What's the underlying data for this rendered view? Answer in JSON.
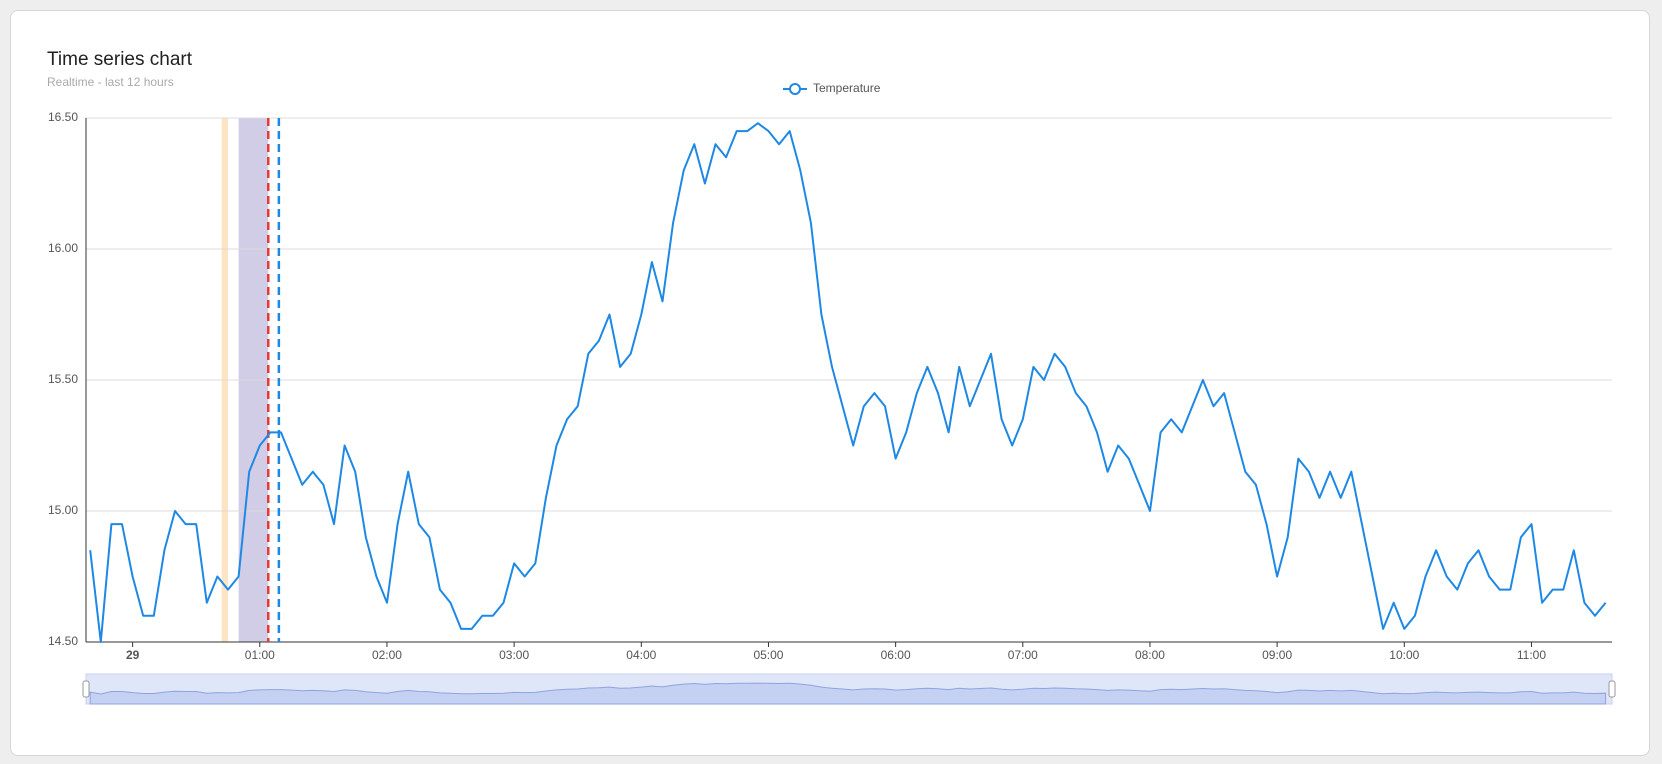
{
  "chart_data": {
    "type": "line",
    "title": "Time series chart",
    "subtitle": "Realtime - last 12 hours",
    "x": [
      "23:40",
      "23:45",
      "23:50",
      "23:55",
      "00:00",
      "00:05",
      "00:10",
      "00:15",
      "00:20",
      "00:25",
      "00:30",
      "00:35",
      "00:40",
      "00:45",
      "00:50",
      "00:55",
      "01:00",
      "01:05",
      "01:10",
      "01:15",
      "01:20",
      "01:25",
      "01:30",
      "01:35",
      "01:40",
      "01:45",
      "01:50",
      "01:55",
      "02:00",
      "02:05",
      "02:10",
      "02:15",
      "02:20",
      "02:25",
      "02:30",
      "02:35",
      "02:40",
      "02:45",
      "02:50",
      "02:55",
      "03:00",
      "03:05",
      "03:10",
      "03:15",
      "03:20",
      "03:25",
      "03:30",
      "03:35",
      "03:40",
      "03:45",
      "03:50",
      "03:55",
      "04:00",
      "04:05",
      "04:10",
      "04:15",
      "04:20",
      "04:25",
      "04:30",
      "04:35",
      "04:40",
      "04:45",
      "04:50",
      "04:55",
      "05:00",
      "05:05",
      "05:10",
      "05:15",
      "05:20",
      "05:25",
      "05:30",
      "05:35",
      "05:40",
      "05:45",
      "05:50",
      "05:55",
      "06:00",
      "06:05",
      "06:10",
      "06:15",
      "06:20",
      "06:25",
      "06:30",
      "06:35",
      "06:40",
      "06:45",
      "06:50",
      "06:55",
      "07:00",
      "07:05",
      "07:10",
      "07:15",
      "07:20",
      "07:25",
      "07:30",
      "07:35",
      "07:40",
      "07:45",
      "07:50",
      "07:55",
      "08:00",
      "08:05",
      "08:10",
      "08:15",
      "08:20",
      "08:25",
      "08:30",
      "08:35",
      "08:40",
      "08:45",
      "08:50",
      "08:55",
      "09:00",
      "09:05",
      "09:10",
      "09:15",
      "09:20",
      "09:25",
      "09:30",
      "09:35",
      "09:40",
      "09:45",
      "09:50",
      "09:55",
      "10:00",
      "10:05",
      "10:10",
      "10:15",
      "10:20",
      "10:25",
      "10:30",
      "10:35",
      "10:40",
      "10:45",
      "10:50",
      "10:55",
      "11:00",
      "11:05",
      "11:10",
      "11:15",
      "11:20",
      "11:25",
      "11:30",
      "11:35"
    ],
    "series": [
      {
        "name": "Temperature",
        "color": "#1e88e5",
        "values": [
          14.85,
          14.5,
          14.95,
          14.95,
          14.75,
          14.6,
          14.6,
          14.85,
          15.0,
          14.95,
          14.95,
          14.65,
          14.75,
          14.7,
          14.75,
          15.15,
          15.25,
          15.3,
          15.3,
          15.2,
          15.1,
          15.15,
          15.1,
          14.95,
          15.25,
          15.15,
          14.9,
          14.75,
          14.65,
          14.95,
          15.15,
          14.95,
          14.9,
          14.7,
          14.65,
          14.55,
          14.55,
          14.6,
          14.6,
          14.65,
          14.8,
          14.75,
          14.8,
          15.05,
          15.25,
          15.35,
          15.4,
          15.6,
          15.65,
          15.75,
          15.55,
          15.6,
          15.75,
          15.95,
          15.8,
          16.1,
          16.3,
          16.4,
          16.25,
          16.4,
          16.35,
          16.45,
          16.45,
          16.48,
          16.45,
          16.4,
          16.45,
          16.3,
          16.1,
          15.75,
          15.55,
          15.4,
          15.25,
          15.4,
          15.45,
          15.4,
          15.2,
          15.3,
          15.45,
          15.55,
          15.45,
          15.3,
          15.55,
          15.4,
          15.5,
          15.6,
          15.35,
          15.25,
          15.35,
          15.55,
          15.5,
          15.6,
          15.55,
          15.45,
          15.4,
          15.3,
          15.15,
          15.25,
          15.2,
          15.1,
          15.0,
          15.3,
          15.35,
          15.3,
          15.4,
          15.5,
          15.4,
          15.45,
          15.3,
          15.15,
          15.1,
          14.95,
          14.75,
          14.9,
          15.2,
          15.15,
          15.05,
          15.15,
          15.05,
          15.15,
          14.95,
          14.75,
          14.55,
          14.65,
          14.55,
          14.6,
          14.75,
          14.85,
          14.75,
          14.7,
          14.8,
          14.85,
          14.75,
          14.7,
          14.7,
          14.9,
          14.95,
          14.65,
          14.7,
          14.7,
          14.85,
          14.65,
          14.6,
          14.65
        ]
      }
    ],
    "xlim": [
      "23:38",
      "11:38"
    ],
    "xticks": [
      {
        "value": "00:00",
        "label": "29"
      },
      "01:00",
      "02:00",
      "03:00",
      "04:00",
      "05:00",
      "06:00",
      "07:00",
      "08:00",
      "09:00",
      "10:00",
      "11:00"
    ],
    "ylim": [
      14.5,
      16.5
    ],
    "yticks": [
      {
        "value": 14.5,
        "label": "14.50"
      },
      {
        "value": 15,
        "label": "15.00"
      },
      {
        "value": 15.5,
        "label": "15.50"
      },
      {
        "value": 16,
        "label": "16.00"
      },
      {
        "value": 16.5,
        "label": "16.50"
      }
    ],
    "grid": true,
    "legend": "top",
    "bands": [
      {
        "from": "00:42",
        "to": "00:45",
        "color": "#ffe4c4"
      },
      {
        "from": "00:50",
        "to": "01:04",
        "color": "#d1cde6"
      }
    ],
    "lines": [
      {
        "x": "01:04",
        "color": "#e53935"
      },
      {
        "x": "01:09",
        "color": "#1e88e5"
      }
    ]
  }
}
